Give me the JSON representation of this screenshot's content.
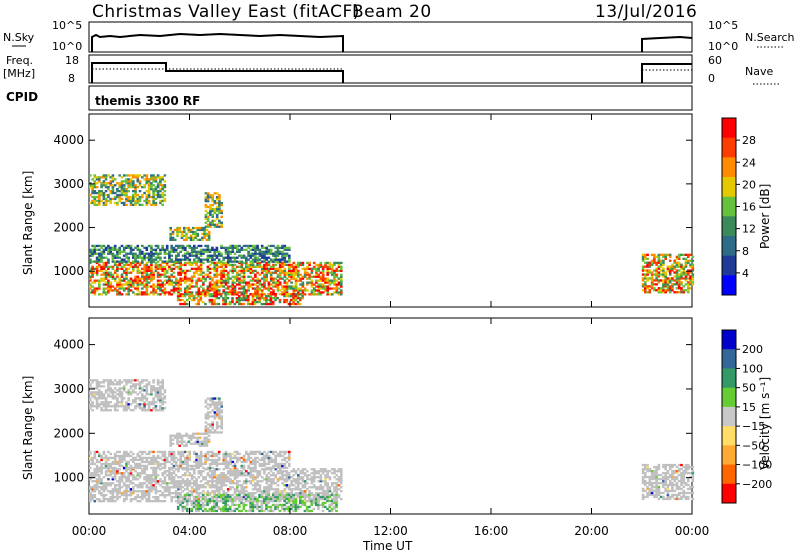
{
  "header": {
    "radar_title": "Christmas Valley East (fitACF)",
    "beam": "Beam 20",
    "date": "13/Jul/2016"
  },
  "aux_panels": {
    "nsky_label": "N.Sky",
    "nsky_ticks": [
      "10^5",
      "10^0"
    ],
    "nsearch_label": "N.Search",
    "nsearch_ticks": [
      "10^5",
      "10^0"
    ],
    "freq_label_1": "Freq.",
    "freq_label_2": "[MHz]",
    "freq_ticks": [
      "18",
      "8"
    ],
    "nave_label": "Nave",
    "nave_ticks": [
      "60",
      "0"
    ],
    "cpid_label": "CPID",
    "cpid_text": "themis 3300 RF"
  },
  "chart_data": [
    {
      "type": "heatmap",
      "panel": "power",
      "ylabel": "Slant Range [km]",
      "xlabel": "",
      "yticks": [
        "1000",
        "2000",
        "3000",
        "4000"
      ],
      "ylim": [
        180,
        4600
      ],
      "xlim": [
        0,
        24
      ],
      "colorbar": {
        "label": "Power [dB]",
        "ticks": [
          "4",
          "8",
          "12",
          "16",
          "20",
          "24",
          "28"
        ],
        "range": [
          0,
          32
        ]
      },
      "data_coverage_hours": [
        [
          0,
          10
        ],
        [
          22,
          24
        ]
      ],
      "echo_regions": [
        {
          "t0": 0.0,
          "t1": 3.0,
          "r0": 2500,
          "r1": 3200,
          "band": "mid"
        },
        {
          "t0": 3.2,
          "t1": 4.8,
          "r0": 1700,
          "r1": 2000,
          "band": "mid"
        },
        {
          "t0": 4.6,
          "t1": 5.3,
          "r0": 2000,
          "r1": 2800,
          "band": "mid"
        },
        {
          "t0": 0.0,
          "t1": 10.0,
          "r0": 450,
          "r1": 1200,
          "band": "high"
        },
        {
          "t0": 0.0,
          "t1": 8.0,
          "r0": 1200,
          "r1": 1600,
          "band": "low"
        },
        {
          "t0": 3.5,
          "t1": 8.5,
          "r0": 230,
          "r1": 500,
          "band": "high"
        },
        {
          "t0": 22.0,
          "t1": 24.0,
          "r0": 500,
          "r1": 1400,
          "band": "high"
        }
      ]
    },
    {
      "type": "heatmap",
      "panel": "velocity",
      "ylabel": "Slant Range [km]",
      "xlabel": "Time UT",
      "yticks": [
        "1000",
        "2000",
        "3000",
        "4000"
      ],
      "ylim": [
        180,
        4600
      ],
      "xlim": [
        0,
        24
      ],
      "xticks": [
        "00:00",
        "04:00",
        "08:00",
        "12:00",
        "16:00",
        "20:00",
        "00:00"
      ],
      "colorbar": {
        "label": "Velocity [m s⁻¹]",
        "ticks": [
          "200",
          "100",
          "50",
          "15",
          "−15",
          "−50",
          "−100",
          "−200"
        ],
        "range": [
          -250,
          250
        ]
      },
      "data_coverage_hours": [
        [
          0,
          10
        ],
        [
          22,
          24
        ]
      ],
      "echo_regions": [
        {
          "t0": 0.0,
          "t1": 3.0,
          "r0": 2500,
          "r1": 3200,
          "band": "ground"
        },
        {
          "t0": 3.2,
          "t1": 4.8,
          "r0": 1700,
          "r1": 2000,
          "band": "ground"
        },
        {
          "t0": 4.6,
          "t1": 5.3,
          "r0": 2000,
          "r1": 2800,
          "band": "ground"
        },
        {
          "t0": 0.0,
          "t1": 10.0,
          "r0": 450,
          "r1": 1200,
          "band": "ground"
        },
        {
          "t0": 0.0,
          "t1": 8.0,
          "r0": 1200,
          "r1": 1600,
          "band": "ground"
        },
        {
          "t0": 3.5,
          "t1": 9.8,
          "r0": 230,
          "r1": 600,
          "band": "positive"
        },
        {
          "t0": 22.0,
          "t1": 24.0,
          "r0": 500,
          "r1": 1300,
          "band": "ground"
        }
      ]
    }
  ],
  "colors": {
    "power_scale": [
      "#0000ff",
      "#1e3c96",
      "#2e6b87",
      "#3a8a5a",
      "#66c23c",
      "#e6c800",
      "#ff8c00",
      "#ff3c00",
      "#ff0000"
    ],
    "velocity_scale": [
      "#ff0000",
      "#ff6600",
      "#ffaa33",
      "#ffdd66",
      "#c8c8c8",
      "#66cc33",
      "#339966",
      "#336699",
      "#0000cc"
    ],
    "ground_scatter": "#c0c0c0"
  }
}
